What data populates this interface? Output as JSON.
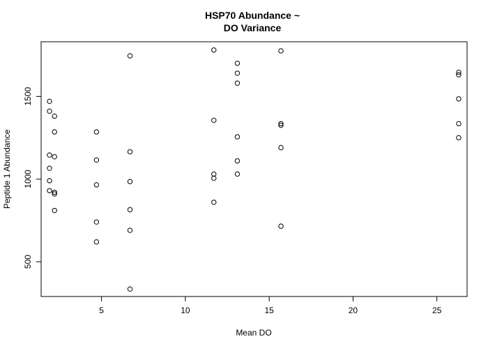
{
  "chart_data": {
    "type": "scatter",
    "title_lines": [
      "HSP70 Abundance ~",
      "DO Variance"
    ],
    "xlabel": "Mean DO",
    "ylabel": "Peptide 1 Abundance",
    "xlim": [
      1.4,
      26.8
    ],
    "ylim": [
      290,
      1830
    ],
    "x_ticks": [
      5,
      10,
      15,
      20,
      25
    ],
    "y_ticks": [
      500,
      1000,
      1500
    ],
    "grid": false,
    "legend": "none",
    "marker": "open-circle",
    "color": "#000000",
    "points": [
      {
        "x": 1.9,
        "y": 1470
      },
      {
        "x": 1.9,
        "y": 1410
      },
      {
        "x": 1.9,
        "y": 1145
      },
      {
        "x": 1.9,
        "y": 1065
      },
      {
        "x": 1.9,
        "y": 990
      },
      {
        "x": 1.9,
        "y": 930
      },
      {
        "x": 2.2,
        "y": 1380
      },
      {
        "x": 2.2,
        "y": 1285
      },
      {
        "x": 2.2,
        "y": 1135
      },
      {
        "x": 2.2,
        "y": 920
      },
      {
        "x": 2.2,
        "y": 910
      },
      {
        "x": 2.2,
        "y": 810
      },
      {
        "x": 4.7,
        "y": 1285
      },
      {
        "x": 4.7,
        "y": 1115
      },
      {
        "x": 4.7,
        "y": 965
      },
      {
        "x": 4.7,
        "y": 740
      },
      {
        "x": 4.7,
        "y": 620
      },
      {
        "x": 6.7,
        "y": 1745
      },
      {
        "x": 6.7,
        "y": 1165
      },
      {
        "x": 6.7,
        "y": 985
      },
      {
        "x": 6.7,
        "y": 815
      },
      {
        "x": 6.7,
        "y": 690
      },
      {
        "x": 6.7,
        "y": 335
      },
      {
        "x": 11.7,
        "y": 1780
      },
      {
        "x": 11.7,
        "y": 1355
      },
      {
        "x": 11.7,
        "y": 1030
      },
      {
        "x": 11.7,
        "y": 1005
      },
      {
        "x": 11.7,
        "y": 860
      },
      {
        "x": 13.1,
        "y": 1700
      },
      {
        "x": 13.1,
        "y": 1640
      },
      {
        "x": 13.1,
        "y": 1580
      },
      {
        "x": 13.1,
        "y": 1255
      },
      {
        "x": 13.1,
        "y": 1110
      },
      {
        "x": 13.1,
        "y": 1030
      },
      {
        "x": 15.7,
        "y": 1775
      },
      {
        "x": 15.7,
        "y": 1335
      },
      {
        "x": 15.7,
        "y": 1325
      },
      {
        "x": 15.7,
        "y": 1190
      },
      {
        "x": 15.7,
        "y": 715
      },
      {
        "x": 26.3,
        "y": 1645
      },
      {
        "x": 26.3,
        "y": 1630
      },
      {
        "x": 26.3,
        "y": 1485
      },
      {
        "x": 26.3,
        "y": 1335
      },
      {
        "x": 26.3,
        "y": 1250
      }
    ]
  }
}
